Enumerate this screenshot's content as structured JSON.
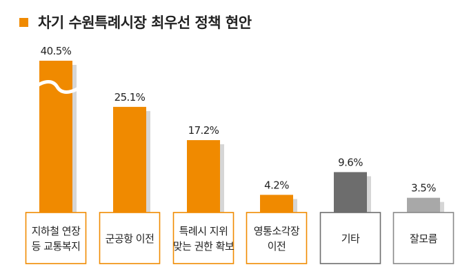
{
  "chart_data": {
    "type": "bar",
    "title": "차기 수원특례시장 최우선 정책 현안",
    "categories": [
      [
        "지하철 연장",
        "등 교통복지"
      ],
      [
        "군공항 이전"
      ],
      [
        "특례시 지위",
        "맞는 권한 확보"
      ],
      [
        "영통소각장",
        "이전"
      ],
      [
        "기타"
      ],
      [
        "잘모름"
      ]
    ],
    "values": [
      40.5,
      25.1,
      17.2,
      4.2,
      9.6,
      3.5
    ],
    "value_labels": [
      "40.5%",
      "25.1%",
      "17.2%",
      "4.2%",
      "9.6%",
      "3.5%"
    ],
    "colors": [
      "#f08a00",
      "#f08a00",
      "#f08a00",
      "#f08a00",
      "#6d6d6d",
      "#a8a8a8"
    ],
    "label_border_colors": [
      "#f08a00",
      "#f08a00",
      "#f08a00",
      "#f08a00",
      "#6d6d6d",
      "#888888"
    ],
    "axis_break_on_first_bar": true,
    "title_marker_color": "#f08a00"
  }
}
